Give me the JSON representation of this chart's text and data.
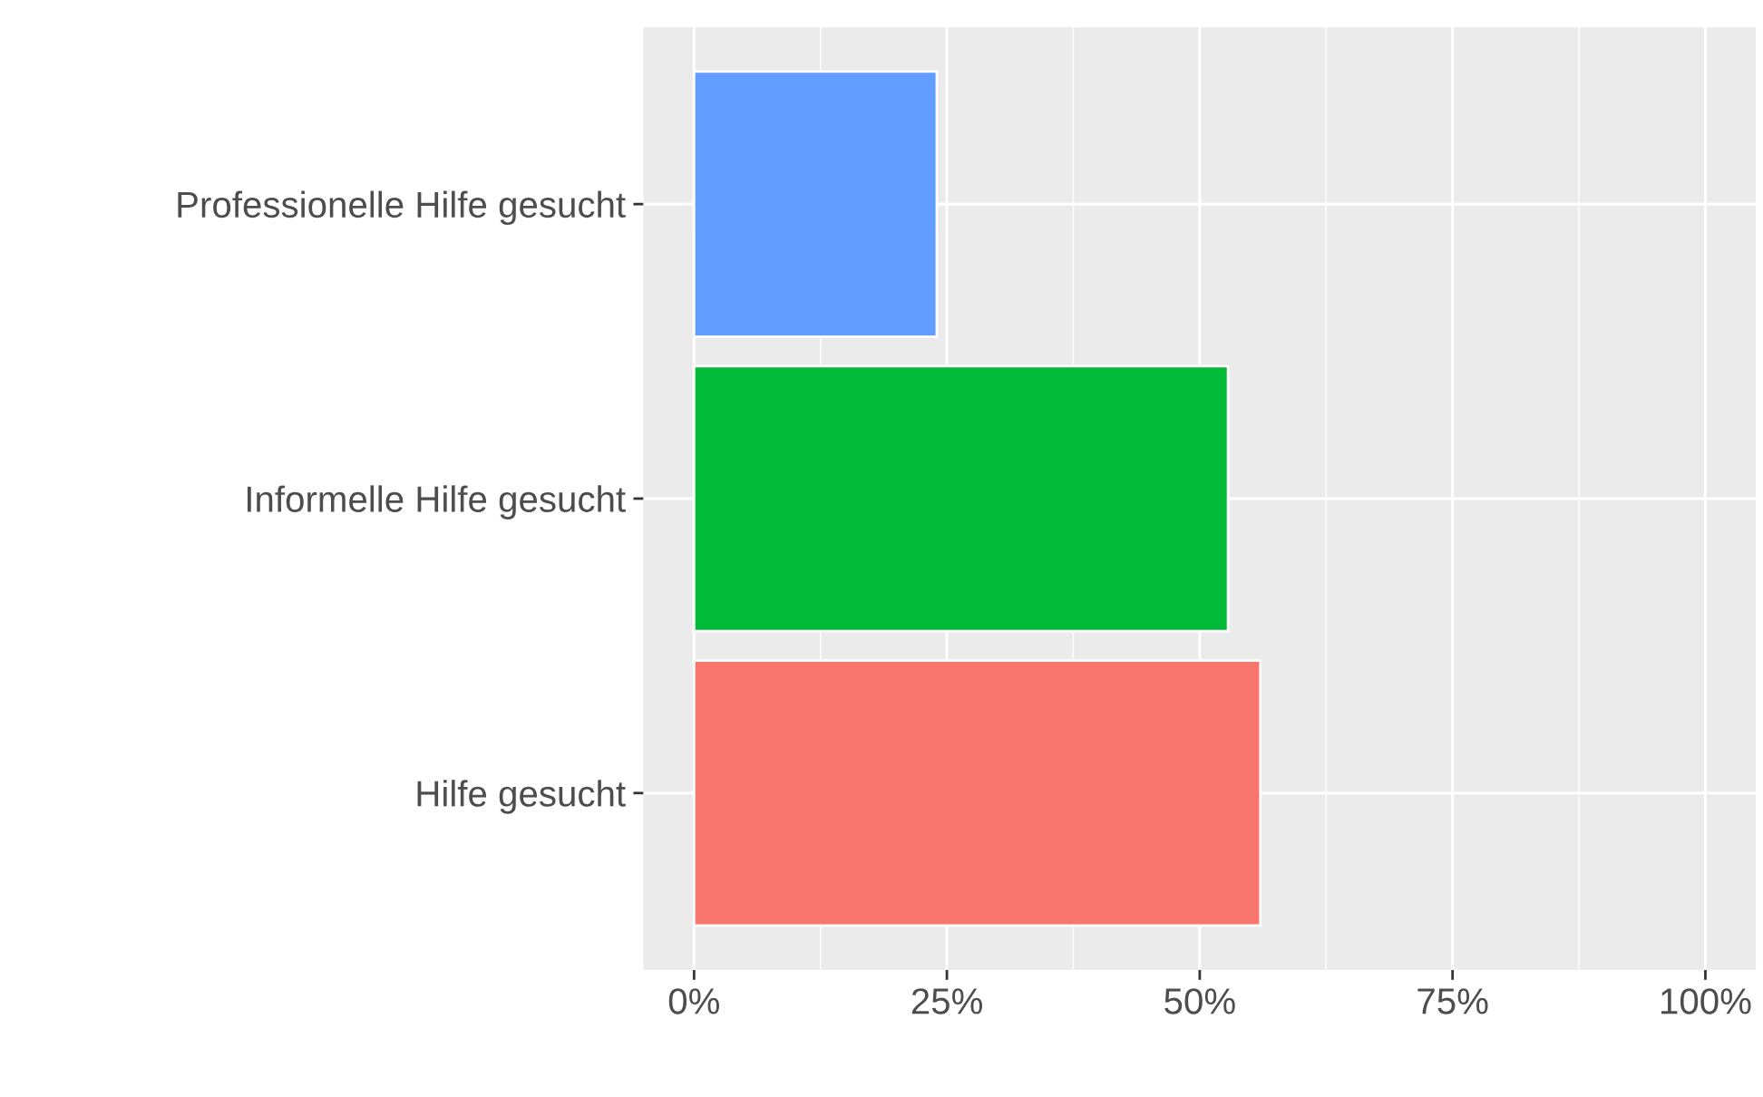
{
  "chart_data": {
    "type": "bar",
    "orientation": "horizontal",
    "categories": [
      "Professionelle Hilfe gesucht",
      "Informelle Hilfe gesucht",
      "Hilfe gesucht"
    ],
    "values": [
      24,
      52.8,
      56
    ],
    "colors": [
      "#619cff",
      "#00ba38",
      "#f8766d"
    ],
    "xlim": [
      -5,
      105
    ],
    "xticks": [
      {
        "value": 0,
        "label": "0%"
      },
      {
        "value": 25,
        "label": "25%"
      },
      {
        "value": 50,
        "label": "50%"
      },
      {
        "value": 75,
        "label": "75%"
      },
      {
        "value": 100,
        "label": "100%"
      }
    ],
    "grid": true,
    "legend": false
  }
}
